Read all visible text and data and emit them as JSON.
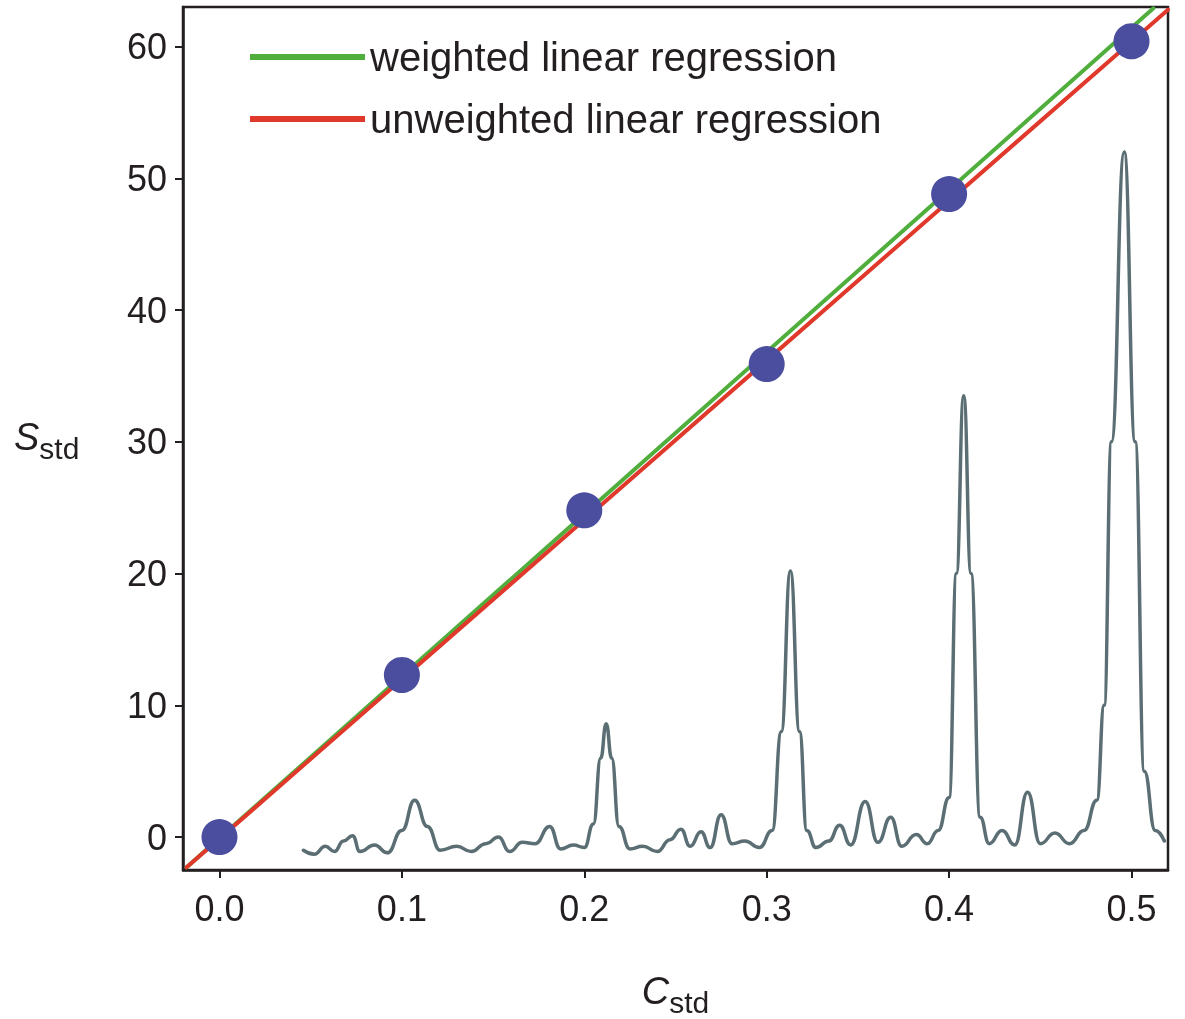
{
  "chart_data": {
    "type": "line",
    "xlabel": "C$_{std}$",
    "ylabel": "S$_{std}$",
    "xlim": [
      -0.02,
      0.52
    ],
    "ylim": [
      -2.5,
      63
    ],
    "xticks": [
      {
        "value": 0,
        "label": "0.0"
      },
      0.1,
      0.2,
      0.3,
      0.4,
      0.5
    ],
    "yticks": [
      0,
      10,
      20,
      30,
      40,
      50,
      60
    ],
    "grid": false,
    "legend": "top left",
    "line_style": "solid",
    "series": [
      {
        "color": "#5a6e74",
        "marker": "none",
        "x": [
          0.046,
          0.052,
          0.058,
          0.063,
          0.068,
          0.073,
          0.077,
          0.085,
          0.092,
          0.1,
          0.107,
          0.114,
          0.121,
          0.13,
          0.138,
          0.146,
          0.153,
          0.159,
          0.166,
          0.173,
          0.181,
          0.187,
          0.194,
          0.2,
          0.205,
          0.209,
          0.212,
          0.215,
          0.219,
          0.225,
          0.232,
          0.24,
          0.247,
          0.253,
          0.258,
          0.264,
          0.269,
          0.275,
          0.281,
          0.288,
          0.296,
          0.303,
          0.308,
          0.313,
          0.318,
          0.322,
          0.327,
          0.334,
          0.34,
          0.346,
          0.354,
          0.361,
          0.368,
          0.374,
          0.382,
          0.388,
          0.394,
          0.4,
          0.404,
          0.408,
          0.412,
          0.417,
          0.422,
          0.429,
          0.436,
          0.443,
          0.45,
          0.458,
          0.466,
          0.474,
          0.481,
          0.485,
          0.489,
          0.496,
          0.502,
          0.507,
          0.513,
          0.518
        ],
        "values": [
          -1,
          -1.3,
          -0.7,
          -1.1,
          -0.3,
          0.1,
          -1.1,
          -0.6,
          -1.2,
          0.5,
          2.8,
          0.8,
          -1.0,
          -0.7,
          -1.1,
          -0.5,
          0.0,
          -1.1,
          -0.4,
          -0.5,
          0.8,
          -0.9,
          -0.6,
          -0.8,
          1.0,
          6.0,
          8.6,
          6.0,
          0.8,
          -0.9,
          -0.7,
          -1.1,
          -0.2,
          0.6,
          -0.7,
          0.4,
          -0.8,
          1.7,
          -0.5,
          -0.3,
          -0.8,
          0.5,
          8,
          20.2,
          8,
          0.5,
          -0.8,
          -0.3,
          0.9,
          -0.6,
          2.7,
          -0.4,
          1.5,
          -0.7,
          0.2,
          -0.5,
          0.5,
          3,
          20,
          33.5,
          20,
          1.5,
          -0.5,
          0.5,
          -0.6,
          3.4,
          -0.5,
          0.3,
          -0.5,
          0.5,
          2.8,
          10,
          30,
          52,
          30,
          5,
          0.5,
          -0.3
        ]
      },
      {
        "type": "scatter",
        "color": "#4b4d9e",
        "marker": "circle",
        "x": [
          0,
          0.1,
          0.2,
          0.3,
          0.4,
          0.5
        ],
        "values": [
          0,
          12.3,
          24.8,
          35.9,
          48.8,
          60.4
        ]
      },
      {
        "name": "weighted linear regression",
        "color": "#4fae3c",
        "marker": "none",
        "x": [
          -0.018,
          0.512
        ],
        "values": [
          -2.3,
          62.9
        ]
      },
      {
        "name": "unweighted linear regression",
        "color": "#e0392b",
        "marker": "none",
        "x": [
          -0.018,
          0.52
        ],
        "values": [
          -2.3,
          62.8
        ]
      }
    ]
  }
}
